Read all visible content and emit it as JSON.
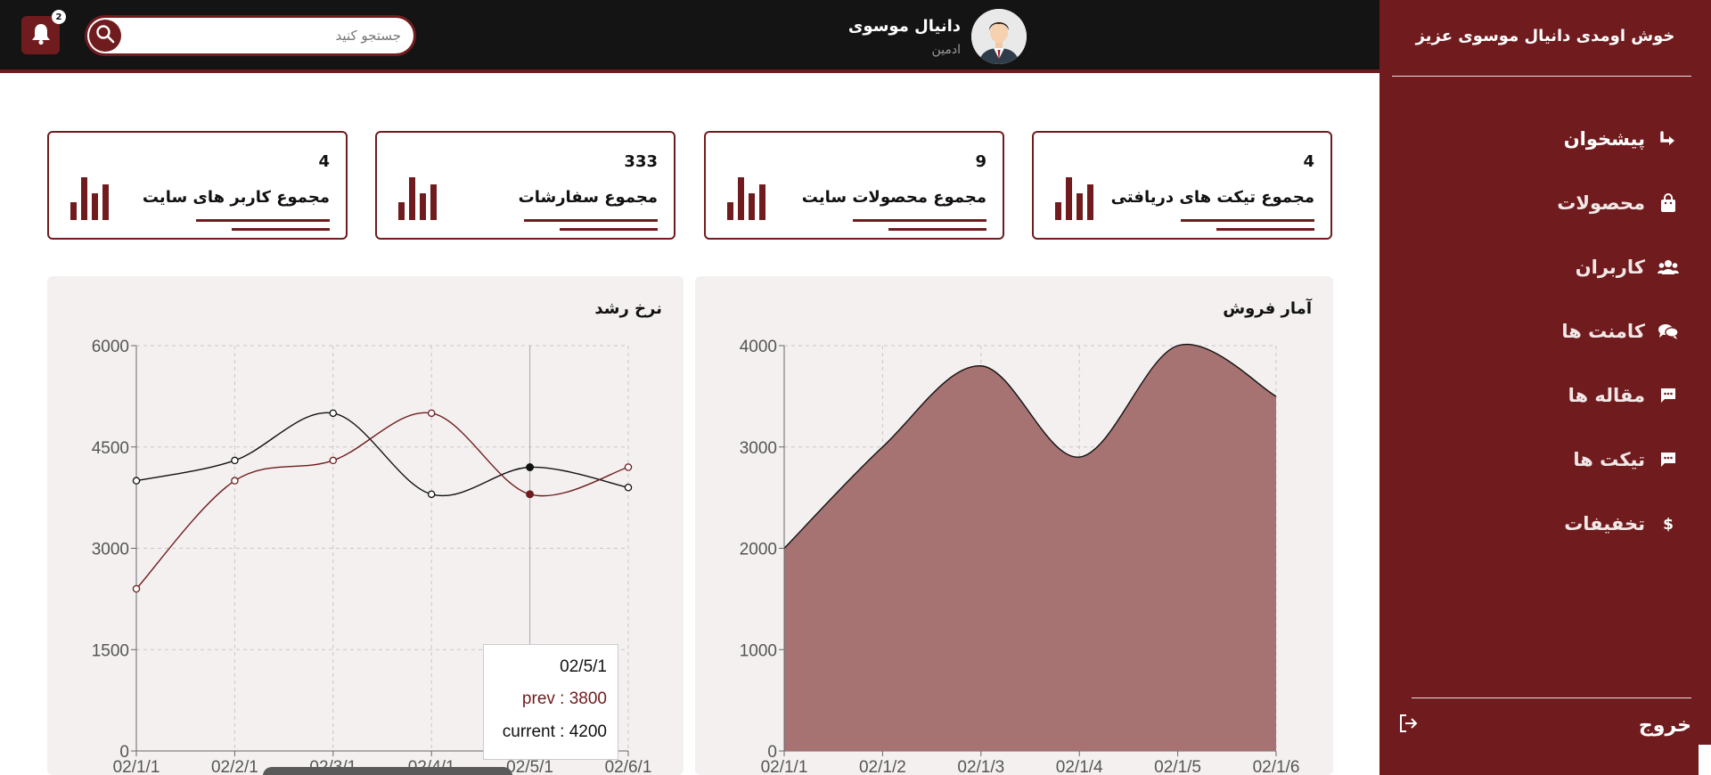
{
  "sidebar": {
    "welcome": "خوش اومدی دانیال موسوی عزیز",
    "items": [
      {
        "label": "پیشخوان",
        "icon": "return-arrow-icon",
        "active": true
      },
      {
        "label": "محصولات",
        "icon": "shopping-bag-icon"
      },
      {
        "label": "کاربران",
        "icon": "users-icon"
      },
      {
        "label": "کامنت ها",
        "icon": "comments-icon"
      },
      {
        "label": "مقاله ها",
        "icon": "message-icon"
      },
      {
        "label": "تیکت ها",
        "icon": "message-icon"
      },
      {
        "label": "تخفیفات",
        "icon": "dollar-icon"
      }
    ],
    "logout_label": "خروج"
  },
  "header": {
    "notification_count": "2",
    "search_placeholder": "جستجو کنید",
    "user_name": "دانیال موسوی",
    "user_role": "ادمین"
  },
  "stats": [
    {
      "value": "4",
      "label": "مجموع تیکت های دریافتی"
    },
    {
      "value": "9",
      "label": "مجموع محصولات سایت"
    },
    {
      "value": "333",
      "label": "مجموع سفارشات"
    },
    {
      "value": "4",
      "label": "مجموع کاربر های سایت"
    }
  ],
  "colors": {
    "accent": "#701c1e",
    "header": "#141414",
    "panel": "#f4f0f0",
    "area_fill": "#a67272"
  },
  "chart_data": [
    {
      "type": "area",
      "title": "آمار فروش",
      "x": [
        "02/1/1",
        "02/1/2",
        "02/1/3",
        "02/1/4",
        "02/1/5",
        "02/1/6"
      ],
      "values": [
        2000,
        3000,
        3800,
        2900,
        4000,
        3500
      ],
      "ylim": [
        0,
        4000
      ],
      "yticks": [
        0,
        1000,
        2000,
        3000,
        4000
      ],
      "grid": true
    },
    {
      "type": "line",
      "title": "نرخ رشد",
      "x": [
        "02/1/1",
        "02/2/1",
        "02/3/1",
        "02/4/1",
        "02/5/1",
        "02/6/1"
      ],
      "series": [
        {
          "name": "current",
          "values": [
            4000,
            4300,
            5000,
            3800,
            4200,
            3900
          ],
          "color": "#111111"
        },
        {
          "name": "prev",
          "values": [
            2400,
            4000,
            4300,
            5000,
            3800,
            4200
          ],
          "color": "#701c1e"
        }
      ],
      "ylim": [
        0,
        6000
      ],
      "yticks": [
        0,
        1500,
        3000,
        4500,
        6000
      ],
      "grid": true,
      "tooltip": {
        "date": "02/5/1",
        "prev": "prev : 3800",
        "current": "current : 4200"
      }
    }
  ]
}
